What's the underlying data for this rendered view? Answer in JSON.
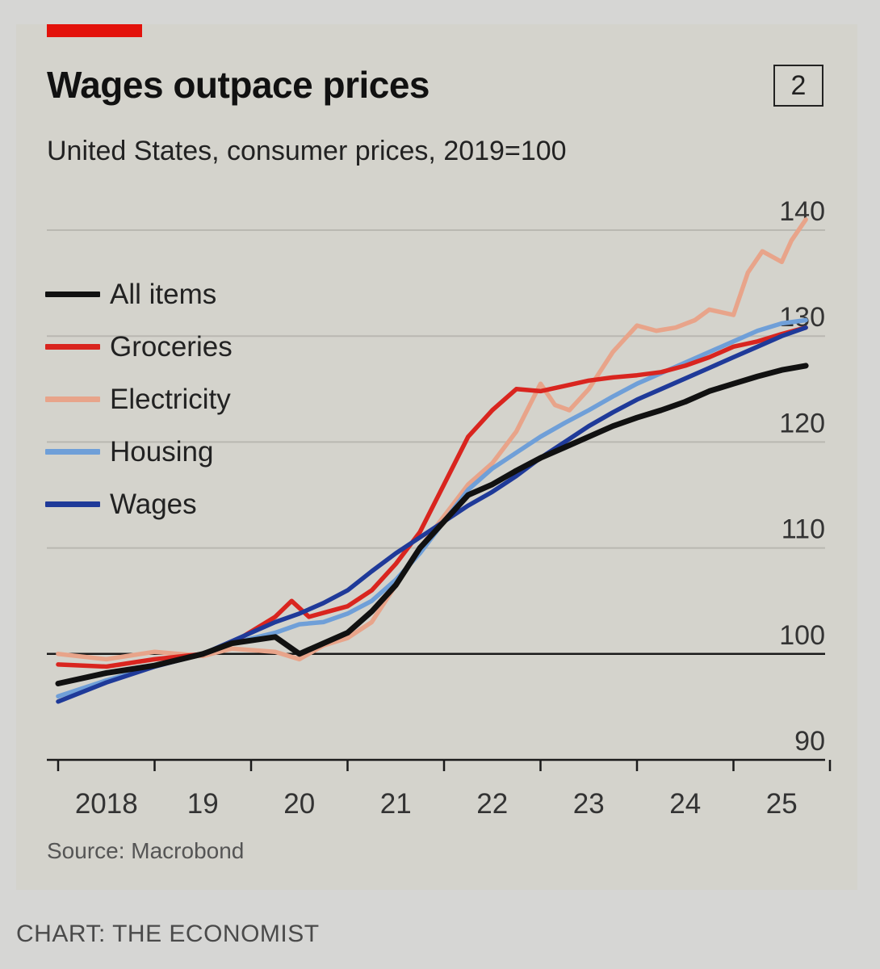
{
  "header": {
    "title": "Wages outpace prices",
    "subtitle": "United States, consumer prices, 2019=100",
    "chart_number": "2"
  },
  "footer": {
    "source": "Source: Macrobond",
    "credit": "CHART: THE ECONOMIST"
  },
  "colors": {
    "accent": "#e3120b",
    "all_items": "#111111",
    "groceries": "#d9251f",
    "electricity": "#e8a48a",
    "housing": "#6f9fd8",
    "wages": "#1f3a99"
  },
  "chart_data": {
    "type": "line",
    "title": "Wages outpace prices",
    "subtitle": "United States, consumer prices, 2019=100",
    "xlabel": "",
    "ylabel": "",
    "ylim": [
      90,
      140
    ],
    "xlim": [
      2018,
      2026
    ],
    "yticks": [
      "90",
      "100",
      "110",
      "120",
      "130",
      "140"
    ],
    "xticks": [
      "2018",
      "19",
      "20",
      "21",
      "22",
      "23",
      "24",
      "25"
    ],
    "grid": true,
    "legend_placement": "top-left",
    "series": [
      {
        "name": "All items",
        "color": "#111111",
        "x": [
          2018.0,
          2018.5,
          2019.0,
          2019.5,
          2019.8,
          2020.25,
          2020.5,
          2020.75,
          2021.0,
          2021.25,
          2021.5,
          2021.75,
          2022.0,
          2022.25,
          2022.5,
          2022.75,
          2023.0,
          2023.25,
          2023.5,
          2023.75,
          2024.0,
          2024.25,
          2024.5,
          2024.75,
          2025.0,
          2025.25,
          2025.5,
          2025.75
        ],
        "values": [
          97.2,
          98.2,
          98.9,
          100.0,
          101.0,
          101.6,
          100.0,
          101.0,
          102.0,
          104.0,
          106.5,
          110.0,
          112.5,
          115.0,
          116.0,
          117.3,
          118.5,
          119.5,
          120.5,
          121.5,
          122.3,
          123.0,
          123.8,
          124.8,
          125.5,
          126.2,
          126.8,
          127.2
        ]
      },
      {
        "name": "Groceries",
        "color": "#d9251f",
        "x": [
          2018.0,
          2018.5,
          2019.0,
          2019.5,
          2019.8,
          2020.25,
          2020.42,
          2020.6,
          2020.8,
          2021.0,
          2021.25,
          2021.5,
          2021.75,
          2022.0,
          2022.25,
          2022.5,
          2022.75,
          2023.0,
          2023.25,
          2023.5,
          2023.75,
          2024.0,
          2024.25,
          2024.5,
          2024.75,
          2025.0,
          2025.25,
          2025.5,
          2025.75
        ],
        "values": [
          99.0,
          98.8,
          99.5,
          100.0,
          101.0,
          103.5,
          105.0,
          103.5,
          104.0,
          104.5,
          106.0,
          108.5,
          111.5,
          116.0,
          120.5,
          123.0,
          125.0,
          124.8,
          125.3,
          125.8,
          126.1,
          126.3,
          126.6,
          127.2,
          128.0,
          129.0,
          129.5,
          130.2,
          130.8
        ]
      },
      {
        "name": "Electricity",
        "color": "#e8a48a",
        "x": [
          2018.0,
          2018.5,
          2019.0,
          2019.5,
          2019.8,
          2020.25,
          2020.5,
          2020.75,
          2021.0,
          2021.25,
          2021.5,
          2021.75,
          2022.0,
          2022.25,
          2022.5,
          2022.75,
          2023.0,
          2023.15,
          2023.3,
          2023.5,
          2023.75,
          2024.0,
          2024.2,
          2024.4,
          2024.6,
          2024.75,
          2025.0,
          2025.15,
          2025.3,
          2025.5,
          2025.6,
          2025.75
        ],
        "values": [
          100.0,
          99.5,
          100.2,
          99.8,
          100.5,
          100.2,
          99.5,
          100.8,
          101.5,
          103.0,
          106.5,
          110.0,
          113.0,
          116.0,
          118.0,
          121.0,
          125.5,
          123.5,
          123.0,
          125.0,
          128.5,
          131.0,
          130.5,
          130.8,
          131.5,
          132.5,
          132.0,
          136.0,
          138.0,
          137.0,
          139.0,
          141.0
        ]
      },
      {
        "name": "Housing",
        "color": "#6f9fd8",
        "x": [
          2018.0,
          2018.5,
          2019.0,
          2019.5,
          2019.8,
          2020.25,
          2020.5,
          2020.75,
          2021.0,
          2021.25,
          2021.5,
          2021.75,
          2022.0,
          2022.25,
          2022.5,
          2022.75,
          2023.0,
          2023.25,
          2023.5,
          2023.75,
          2024.0,
          2024.25,
          2024.5,
          2024.75,
          2025.0,
          2025.25,
          2025.5,
          2025.75
        ],
        "values": [
          96.0,
          97.5,
          98.8,
          100.0,
          101.0,
          102.0,
          102.8,
          103.0,
          103.8,
          105.0,
          107.0,
          109.5,
          112.5,
          115.5,
          117.5,
          119.0,
          120.5,
          121.8,
          123.0,
          124.3,
          125.5,
          126.5,
          127.5,
          128.5,
          129.5,
          130.5,
          131.2,
          131.5
        ]
      },
      {
        "name": "Wages",
        "color": "#1f3a99",
        "x": [
          2018.0,
          2018.5,
          2019.0,
          2019.5,
          2019.8,
          2020.25,
          2020.5,
          2020.75,
          2021.0,
          2021.25,
          2021.5,
          2021.75,
          2022.0,
          2022.25,
          2022.5,
          2022.75,
          2023.0,
          2023.25,
          2023.5,
          2023.75,
          2024.0,
          2024.25,
          2024.5,
          2024.75,
          2025.0,
          2025.25,
          2025.5,
          2025.75
        ],
        "values": [
          95.5,
          97.3,
          98.8,
          100.0,
          101.2,
          103.0,
          103.8,
          104.8,
          106.0,
          107.8,
          109.5,
          111.0,
          112.5,
          114.0,
          115.3,
          116.8,
          118.5,
          120.0,
          121.5,
          122.8,
          124.0,
          125.0,
          126.0,
          127.0,
          128.0,
          129.0,
          130.0,
          130.8
        ]
      }
    ]
  }
}
